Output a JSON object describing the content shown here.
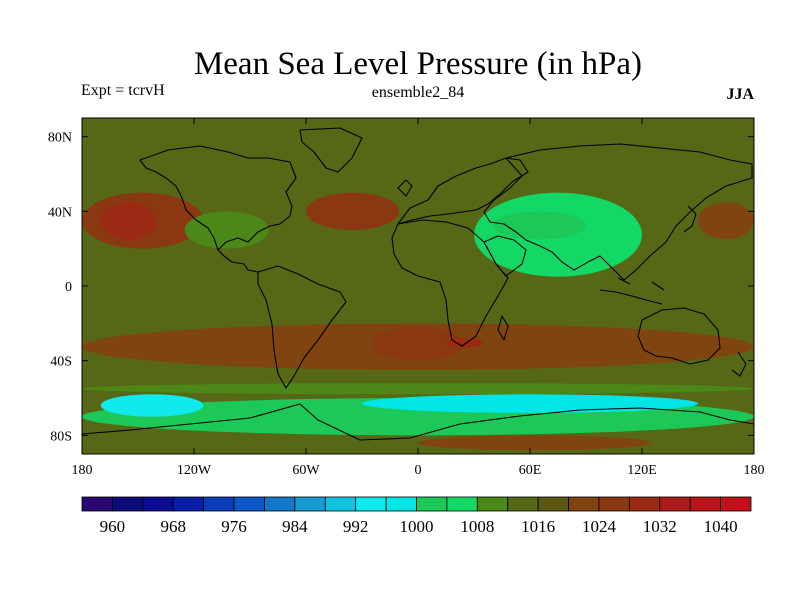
{
  "title": "Mean Sea Level Pressure (in hPa)",
  "subtitle_left": "Expt = tcrvH",
  "subtitle_center": "ensemble2_84",
  "subtitle_right": "JJA",
  "chart_data": {
    "type": "filled-contour-map",
    "variable": "Mean Sea Level Pressure",
    "units": "hPa",
    "season": "JJA",
    "lon_range": [
      -180,
      180
    ],
    "lat_range": [
      -90,
      90
    ],
    "x_ticks": [
      {
        "value": -180,
        "label": "180"
      },
      {
        "value": -120,
        "label": "120W"
      },
      {
        "value": -60,
        "label": "60W"
      },
      {
        "value": 0,
        "label": "0"
      },
      {
        "value": 60,
        "label": "60E"
      },
      {
        "value": 120,
        "label": "120E"
      },
      {
        "value": 180,
        "label": "180"
      }
    ],
    "y_ticks": [
      {
        "value": 80,
        "label": "80N"
      },
      {
        "value": 40,
        "label": "40N"
      },
      {
        "value": 0,
        "label": "0"
      },
      {
        "value": -40,
        "label": "40S"
      },
      {
        "value": -80,
        "label": "80S"
      }
    ],
    "colorbar": {
      "levels": [
        956,
        960,
        964,
        968,
        972,
        976,
        980,
        984,
        988,
        992,
        996,
        1000,
        1004,
        1008,
        1012,
        1016,
        1020,
        1024,
        1028,
        1032,
        1036,
        1040,
        1044
      ],
      "labeled": [
        "960",
        "968",
        "976",
        "984",
        "992",
        "1000",
        "1008",
        "1016",
        "1024",
        "1032",
        "1040"
      ],
      "colors": [
        "#280870",
        "#0c0c78",
        "#0a0a92",
        "#081eaa",
        "#0a3cba",
        "#0c58c4",
        "#1478c8",
        "#189ad2",
        "#10c4e0",
        "#10eaee",
        "#00e6e6",
        "#1cc858",
        "#14d866",
        "#4c8818",
        "#566816",
        "#5a5810",
        "#804410",
        "#8a3812",
        "#9a2a14",
        "#aa1a1a",
        "#b8141a",
        "#c2101a"
      ]
    },
    "base_band_color": "#566816",
    "regions": [
      {
        "name": "southern-ocean-low-belt",
        "lon": [
          -180,
          180
        ],
        "lat": [
          -80,
          -60
        ],
        "value": 1000
      },
      {
        "name": "southern-ocean-deep-low-pacific",
        "lon": [
          -170,
          -115
        ],
        "lat": [
          -70,
          -58
        ],
        "value": 992
      },
      {
        "name": "southern-ocean-deep-low-indian",
        "lon": [
          -30,
          150
        ],
        "lat": [
          -68,
          -58
        ],
        "value": 996
      },
      {
        "name": "southern-ocean-rim",
        "lon": [
          -180,
          180
        ],
        "lat": [
          -58,
          -52
        ],
        "value": 1008
      },
      {
        "name": "southern-midlat-high-belt",
        "lon": [
          -180,
          180
        ],
        "lat": [
          -45,
          -20
        ],
        "value": 1020
      },
      {
        "name": "south-atlantic-high",
        "lon": [
          -25,
          25
        ],
        "lat": [
          -40,
          -22
        ],
        "value": 1024
      },
      {
        "name": "south-africa-high",
        "lon": [
          15,
          35
        ],
        "lat": [
          -33,
          -28
        ],
        "value": 1028
      },
      {
        "name": "antarctic-interior-high",
        "lon": [
          0,
          125
        ],
        "lat": [
          -88,
          -80
        ],
        "value": 1020
      },
      {
        "name": "north-pacific-high",
        "lon": [
          -180,
          -115
        ],
        "lat": [
          20,
          50
        ],
        "value": 1024
      },
      {
        "name": "north-pacific-high-core",
        "lon": [
          -170,
          -140
        ],
        "lat": [
          25,
          45
        ],
        "value": 1028
      },
      {
        "name": "azores-high",
        "lon": [
          -60,
          -10
        ],
        "lat": [
          30,
          50
        ],
        "value": 1024
      },
      {
        "name": "asian-monsoon-low",
        "lon": [
          30,
          120
        ],
        "lat": [
          5,
          50
        ],
        "value": 1004
      },
      {
        "name": "asian-monsoon-low-core",
        "lon": [
          40,
          90
        ],
        "lat": [
          25,
          40
        ],
        "value": 1000
      },
      {
        "name": "north-america-thermal-low",
        "lon": [
          -125,
          -80
        ],
        "lat": [
          20,
          40
        ],
        "value": 1008
      },
      {
        "name": "west-pacific-high",
        "lon": [
          150,
          180
        ],
        "lat": [
          25,
          45
        ],
        "value": 1020
      }
    ]
  }
}
